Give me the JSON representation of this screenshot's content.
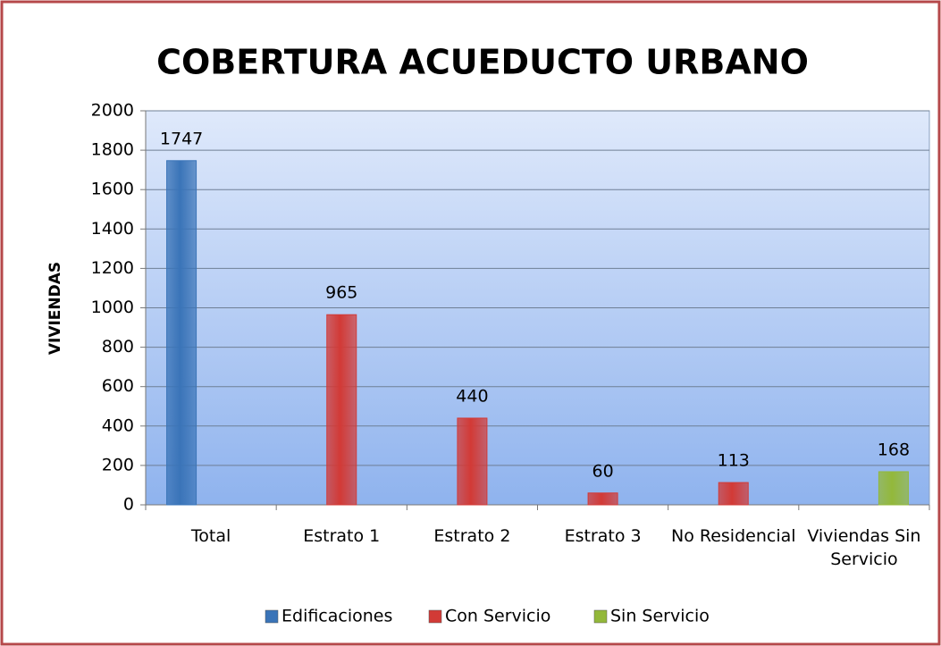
{
  "chart_data": {
    "type": "bar",
    "title": "COBERTURA ACUEDUCTO URBANO",
    "y_label": "VIVIENDAS",
    "categories": [
      "Total",
      "Estrato 1",
      "Estrato 2",
      "Estrato 3",
      "No Residencial",
      "Viviendas Sin Servicio"
    ],
    "series": [
      {
        "name": "Edificaciones",
        "color": "#3a74b8",
        "values": [
          1747,
          null,
          null,
          null,
          null,
          null
        ]
      },
      {
        "name": "Con Servicio",
        "color": "#d23a36",
        "values": [
          null,
          965,
          440,
          60,
          113,
          null
        ]
      },
      {
        "name": "Sin Servicio",
        "color": "#93b83a",
        "values": [
          null,
          null,
          null,
          null,
          null,
          168
        ]
      }
    ],
    "ylim": [
      0,
      2000
    ],
    "yticks": [
      0,
      200,
      400,
      600,
      800,
      1000,
      1200,
      1400,
      1600,
      1800,
      2000
    ],
    "grid": true,
    "legend": "bottom"
  }
}
